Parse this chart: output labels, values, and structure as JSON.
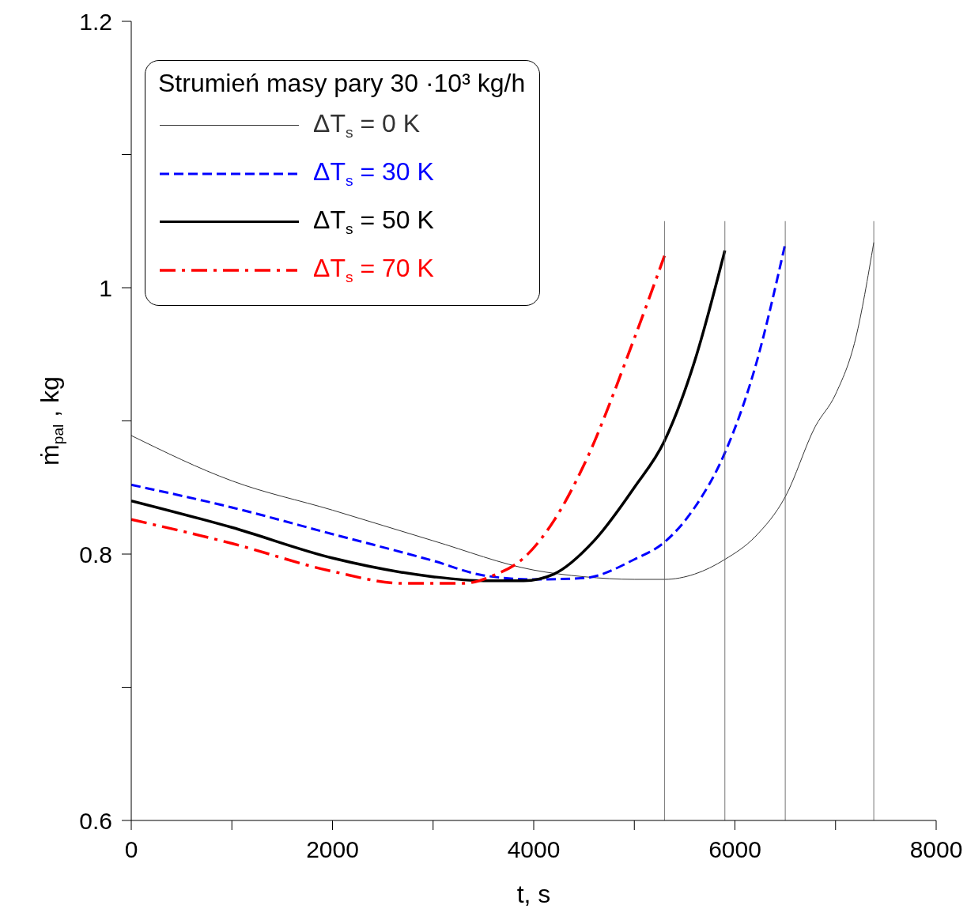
{
  "chart_data": {
    "type": "line",
    "xlabel": "t, s",
    "ylabel": "ṁ$_{pal}$ , kg",
    "legend_title": "Strumień masy pary 30 ·10³ kg/h",
    "legend": "top left",
    "grid": false,
    "marker": "none",
    "xlim": [
      0,
      8000
    ],
    "xticks": [
      0,
      {
        "value": 1000,
        "label": null
      },
      2000,
      {
        "value": 3000,
        "label": null
      },
      4000,
      {
        "value": 5000,
        "label": null
      },
      6000,
      {
        "value": 7000,
        "label": null
      },
      8000
    ],
    "ylim": [
      0.6,
      1.2
    ],
    "yticks": [
      0.6,
      {
        "value": 0.7,
        "label": null
      },
      0.8,
      {
        "value": 0.9,
        "label": null
      },
      1,
      {
        "value": 1.1,
        "label": null
      },
      1.2
    ],
    "series": [
      {
        "name": "ΔT$_{s}$ = 0 K",
        "color": "#333333",
        "line_style": "solid",
        "x": [
          0,
          1000,
          2000,
          3000,
          4000,
          4500,
          5000,
          5300,
          5600,
          5900,
          6200,
          6500,
          6800,
          7000,
          7200,
          7380
        ],
        "values": [
          0.889,
          0.855,
          0.833,
          0.81,
          0.788,
          0.783,
          0.781,
          0.781,
          0.785,
          0.796,
          0.813,
          0.843,
          0.896,
          0.92,
          0.962,
          1.034
        ]
      },
      {
        "name": "ΔT$_{s}$ = 30 K",
        "color": "#0000ff",
        "line_style": "dashed",
        "x": [
          0,
          1000,
          2000,
          3000,
          3500,
          4000,
          4500,
          5000,
          5300,
          5600,
          5900,
          6200,
          6500
        ],
        "values": [
          0.852,
          0.835,
          0.815,
          0.795,
          0.784,
          0.781,
          0.782,
          0.796,
          0.809,
          0.835,
          0.876,
          0.94,
          1.033
        ]
      },
      {
        "name": "ΔT$_{s}$ = 50 K",
        "color": "#000000",
        "line_style": "solid",
        "x": [
          0,
          1000,
          2000,
          3000,
          3500,
          3900,
          4200,
          4600,
          5000,
          5300,
          5600,
          5900
        ],
        "values": [
          0.84,
          0.82,
          0.797,
          0.783,
          0.78,
          0.78,
          0.785,
          0.81,
          0.85,
          0.885,
          0.945,
          1.028
        ]
      },
      {
        "name": "ΔT$_{s}$ = 70 K",
        "color": "#ff0000",
        "line_style": "dashdot",
        "x": [
          0,
          1000,
          2000,
          2700,
          3300,
          3600,
          3900,
          4200,
          4500,
          5000,
          5300
        ],
        "values": [
          0.826,
          0.808,
          0.787,
          0.778,
          0.778,
          0.784,
          0.797,
          0.825,
          0.867,
          0.962,
          1.024
        ]
      },
      {
        "color": "#555555",
        "line_style": "solid",
        "x": [
          5300,
          5300
        ],
        "values": [
          0.6,
          1.05
        ]
      },
      {
        "color": "#555555",
        "line_style": "solid",
        "x": [
          5900,
          5900
        ],
        "values": [
          0.6,
          1.05
        ]
      },
      {
        "color": "#555555",
        "line_style": "solid",
        "x": [
          6500,
          6500
        ],
        "values": [
          0.6,
          1.05
        ]
      },
      {
        "color": "#555555",
        "line_style": "solid",
        "x": [
          7380,
          7380
        ],
        "values": [
          0.6,
          1.05
        ]
      }
    ]
  }
}
